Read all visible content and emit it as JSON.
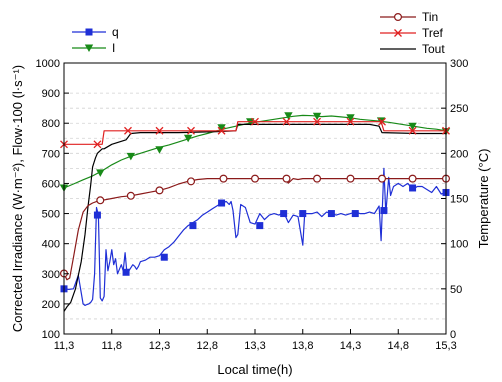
{
  "chart_data": {
    "type": "line",
    "xlabel": "Local time(h)",
    "ylabel": "Corrected Irradiance (W·m⁻²), Flow·100 (l·s⁻¹)",
    "y2label": "Temperature (°C)",
    "xlim": [
      11.3,
      15.3
    ],
    "ylim": [
      100,
      1000
    ],
    "y2lim": [
      0,
      300
    ],
    "x_ticks": [
      11.3,
      11.8,
      12.3,
      12.8,
      13.3,
      13.8,
      14.3,
      14.8,
      15.3
    ],
    "x_tick_labels": [
      "11,3",
      "11,8",
      "12,3",
      "12,8",
      "13,3",
      "13,8",
      "14,3",
      "14,8",
      "15,3"
    ],
    "y_ticks": [
      100,
      200,
      300,
      400,
      500,
      600,
      700,
      800,
      900,
      1000
    ],
    "y2_ticks": [
      0,
      50,
      100,
      150,
      200,
      250,
      300
    ],
    "grid": "horizontal dashed lines on left axis",
    "legends": {
      "top-left": [
        "q",
        "I"
      ],
      "top-right": [
        "Tin",
        "Tref",
        "Tout"
      ]
    },
    "colors": {
      "q": "#1f2fd6",
      "I": "#188a18",
      "Tin": "#8b1a1a",
      "Tref": "#e02020",
      "Tout": "#000000"
    },
    "series": [
      {
        "name": "q",
        "axis": "left",
        "marker": "square",
        "x": [
          11.3,
          11.35,
          11.4,
          11.45,
          11.5,
          11.52,
          11.54,
          11.56,
          11.58,
          11.6,
          11.62,
          11.64,
          11.66,
          11.68,
          11.7,
          11.72,
          11.74,
          11.76,
          11.78,
          11.8,
          11.82,
          11.84,
          11.86,
          11.88,
          11.9,
          11.92,
          11.94,
          11.96,
          11.98,
          12.0,
          12.02,
          12.04,
          12.06,
          12.08,
          12.1,
          12.15,
          12.2,
          12.25,
          12.3,
          12.35,
          12.4,
          12.45,
          12.5,
          12.55,
          12.6,
          12.65,
          12.7,
          12.75,
          12.8,
          12.85,
          12.9,
          12.95,
          13.0,
          13.03,
          13.05,
          13.07,
          13.1,
          13.12,
          13.15,
          13.2,
          13.25,
          13.3,
          13.35,
          13.4,
          13.45,
          13.5,
          13.55,
          13.6,
          13.65,
          13.7,
          13.75,
          13.8,
          13.82,
          13.85,
          13.9,
          13.95,
          14.0,
          14.05,
          14.1,
          14.15,
          14.2,
          14.25,
          14.3,
          14.35,
          14.4,
          14.45,
          14.5,
          14.55,
          14.6,
          14.62,
          14.65,
          14.67,
          14.7,
          14.72,
          14.75,
          14.8,
          14.85,
          14.9,
          14.95,
          15.0,
          15.05,
          15.1,
          15.15,
          15.2,
          15.25,
          15.3
        ],
        "values": [
          250,
          248,
          250,
          295,
          200,
          195,
          198,
          200,
          205,
          215,
          300,
          520,
          495,
          220,
          210,
          225,
          380,
          310,
          340,
          380,
          330,
          350,
          300,
          315,
          330,
          310,
          370,
          300,
          310,
          320,
          330,
          325,
          315,
          325,
          340,
          345,
          355,
          355,
          360,
          380,
          390,
          405,
          425,
          445,
          460,
          470,
          480,
          495,
          505,
          515,
          525,
          535,
          540,
          530,
          540,
          510,
          420,
          430,
          530,
          520,
          470,
          465,
          500,
          480,
          495,
          500,
          495,
          505,
          470,
          495,
          490,
          395,
          500,
          500,
          500,
          505,
          490,
          505,
          500,
          495,
          500,
          495,
          500,
          505,
          500,
          500,
          505,
          500,
          525,
          410,
          650,
          500,
          620,
          560,
          590,
          600,
          590,
          600,
          580,
          590,
          590,
          580,
          570,
          590,
          565,
          570
        ],
        "marker_x": [
          11.3,
          11.65,
          11.95,
          12.35,
          12.65,
          12.95,
          13.35,
          13.6,
          13.8,
          14.1,
          14.35,
          14.65,
          14.95,
          15.3
        ],
        "marker_values": [
          250,
          495,
          305,
          355,
          460,
          535,
          460,
          500,
          500,
          500,
          500,
          510,
          585,
          570
        ]
      },
      {
        "name": "I",
        "axis": "left",
        "marker": "triangle-down",
        "x": [
          11.3,
          11.4,
          11.5,
          11.6,
          11.7,
          11.8,
          11.9,
          12.0,
          12.1,
          12.2,
          12.3,
          12.4,
          12.5,
          12.6,
          12.7,
          12.8,
          12.9,
          13.0,
          13.1,
          13.2,
          13.3,
          13.4,
          13.5,
          13.6,
          13.7,
          13.8,
          13.9,
          14.0,
          14.1,
          14.2,
          14.3,
          14.4,
          14.5,
          14.6,
          14.7,
          14.8,
          14.9,
          15.0,
          15.1,
          15.2,
          15.3
        ],
        "values": [
          585,
          598,
          612,
          625,
          642,
          662,
          678,
          690,
          700,
          710,
          720,
          728,
          738,
          748,
          758,
          766,
          775,
          783,
          790,
          797,
          803,
          808,
          813,
          818,
          823,
          826,
          825,
          822,
          824,
          821,
          818,
          813,
          810,
          807,
          803,
          798,
          793,
          788,
          783,
          780,
          775
        ],
        "marker_x": [
          11.3,
          11.68,
          12.0,
          12.3,
          12.6,
          12.95,
          13.25,
          13.65,
          13.95,
          14.3,
          14.62,
          14.95,
          15.3
        ],
        "marker_values": [
          585,
          635,
          690,
          712,
          750,
          785,
          805,
          825,
          823,
          818,
          808,
          790,
          772
        ]
      },
      {
        "name": "Tin",
        "axis": "right",
        "marker": "circle-open",
        "x": [
          11.3,
          11.33,
          11.36,
          11.4,
          11.45,
          11.5,
          11.55,
          11.6,
          11.65,
          11.7,
          11.8,
          11.9,
          12.0,
          12.1,
          12.2,
          12.3,
          12.4,
          12.5,
          12.6,
          12.7,
          12.8,
          12.9,
          13.0,
          13.1,
          13.2,
          13.3,
          13.4,
          13.5,
          13.6,
          13.65,
          13.7,
          13.75,
          13.8,
          13.9,
          14.0,
          14.1,
          14.2,
          14.3,
          14.4,
          14.5,
          14.6,
          14.7,
          14.8,
          14.9,
          15.0,
          15.1,
          15.2,
          15.3
        ],
        "values": [
          67,
          60,
          62,
          85,
          115,
          135,
          142,
          145,
          147,
          148,
          150,
          152,
          153,
          155,
          157,
          159,
          162,
          166,
          169,
          171,
          172,
          172,
          172,
          172,
          172,
          172,
          172,
          172,
          172,
          167,
          172,
          171,
          172,
          172,
          172,
          172,
          172,
          172,
          172,
          172,
          172,
          172,
          172,
          172,
          172,
          172,
          172,
          172
        ],
        "marker_x": [
          11.3,
          11.68,
          12.0,
          12.3,
          12.63,
          12.97,
          13.3,
          13.63,
          13.95,
          14.3,
          14.63,
          14.95,
          15.3
        ],
        "marker_values": [
          67,
          148,
          153,
          159,
          169,
          172,
          172,
          172,
          172,
          172,
          172,
          172,
          172
        ]
      },
      {
        "name": "Tref",
        "axis": "right",
        "marker": "x",
        "x": [
          11.3,
          11.7,
          11.72,
          12.0,
          12.4,
          12.9,
          13.1,
          13.12,
          13.5,
          14.0,
          14.5,
          14.62,
          14.65,
          15.0,
          15.3
        ],
        "values": [
          210,
          210,
          225,
          225,
          225,
          225,
          225,
          235,
          235,
          235,
          235,
          235,
          225,
          225,
          225
        ],
        "marker_x": [
          11.3,
          11.65,
          11.97,
          12.3,
          12.63,
          12.95,
          13.3,
          13.63,
          13.95,
          14.3,
          14.63,
          14.95,
          15.3
        ],
        "marker_values": [
          210,
          210,
          225,
          225,
          225,
          225,
          235,
          235,
          235,
          235,
          235,
          225,
          225
        ]
      },
      {
        "name": "Tout",
        "axis": "right",
        "marker": "none",
        "x": [
          11.3,
          11.33,
          11.37,
          11.42,
          11.48,
          11.52,
          11.55,
          11.58,
          11.6,
          11.63,
          11.65,
          11.7,
          11.72,
          11.8,
          11.95,
          12.0,
          12.1,
          12.5,
          12.9,
          13.1,
          13.12,
          13.5,
          14.0,
          14.5,
          14.6,
          14.63,
          15.0,
          15.3
        ],
        "values": [
          25,
          30,
          35,
          50,
          80,
          110,
          140,
          165,
          185,
          195,
          200,
          205,
          205,
          210,
          215,
          222,
          223,
          223,
          224,
          225,
          232,
          232,
          232,
          232,
          230,
          223,
          222,
          222
        ]
      }
    ]
  }
}
